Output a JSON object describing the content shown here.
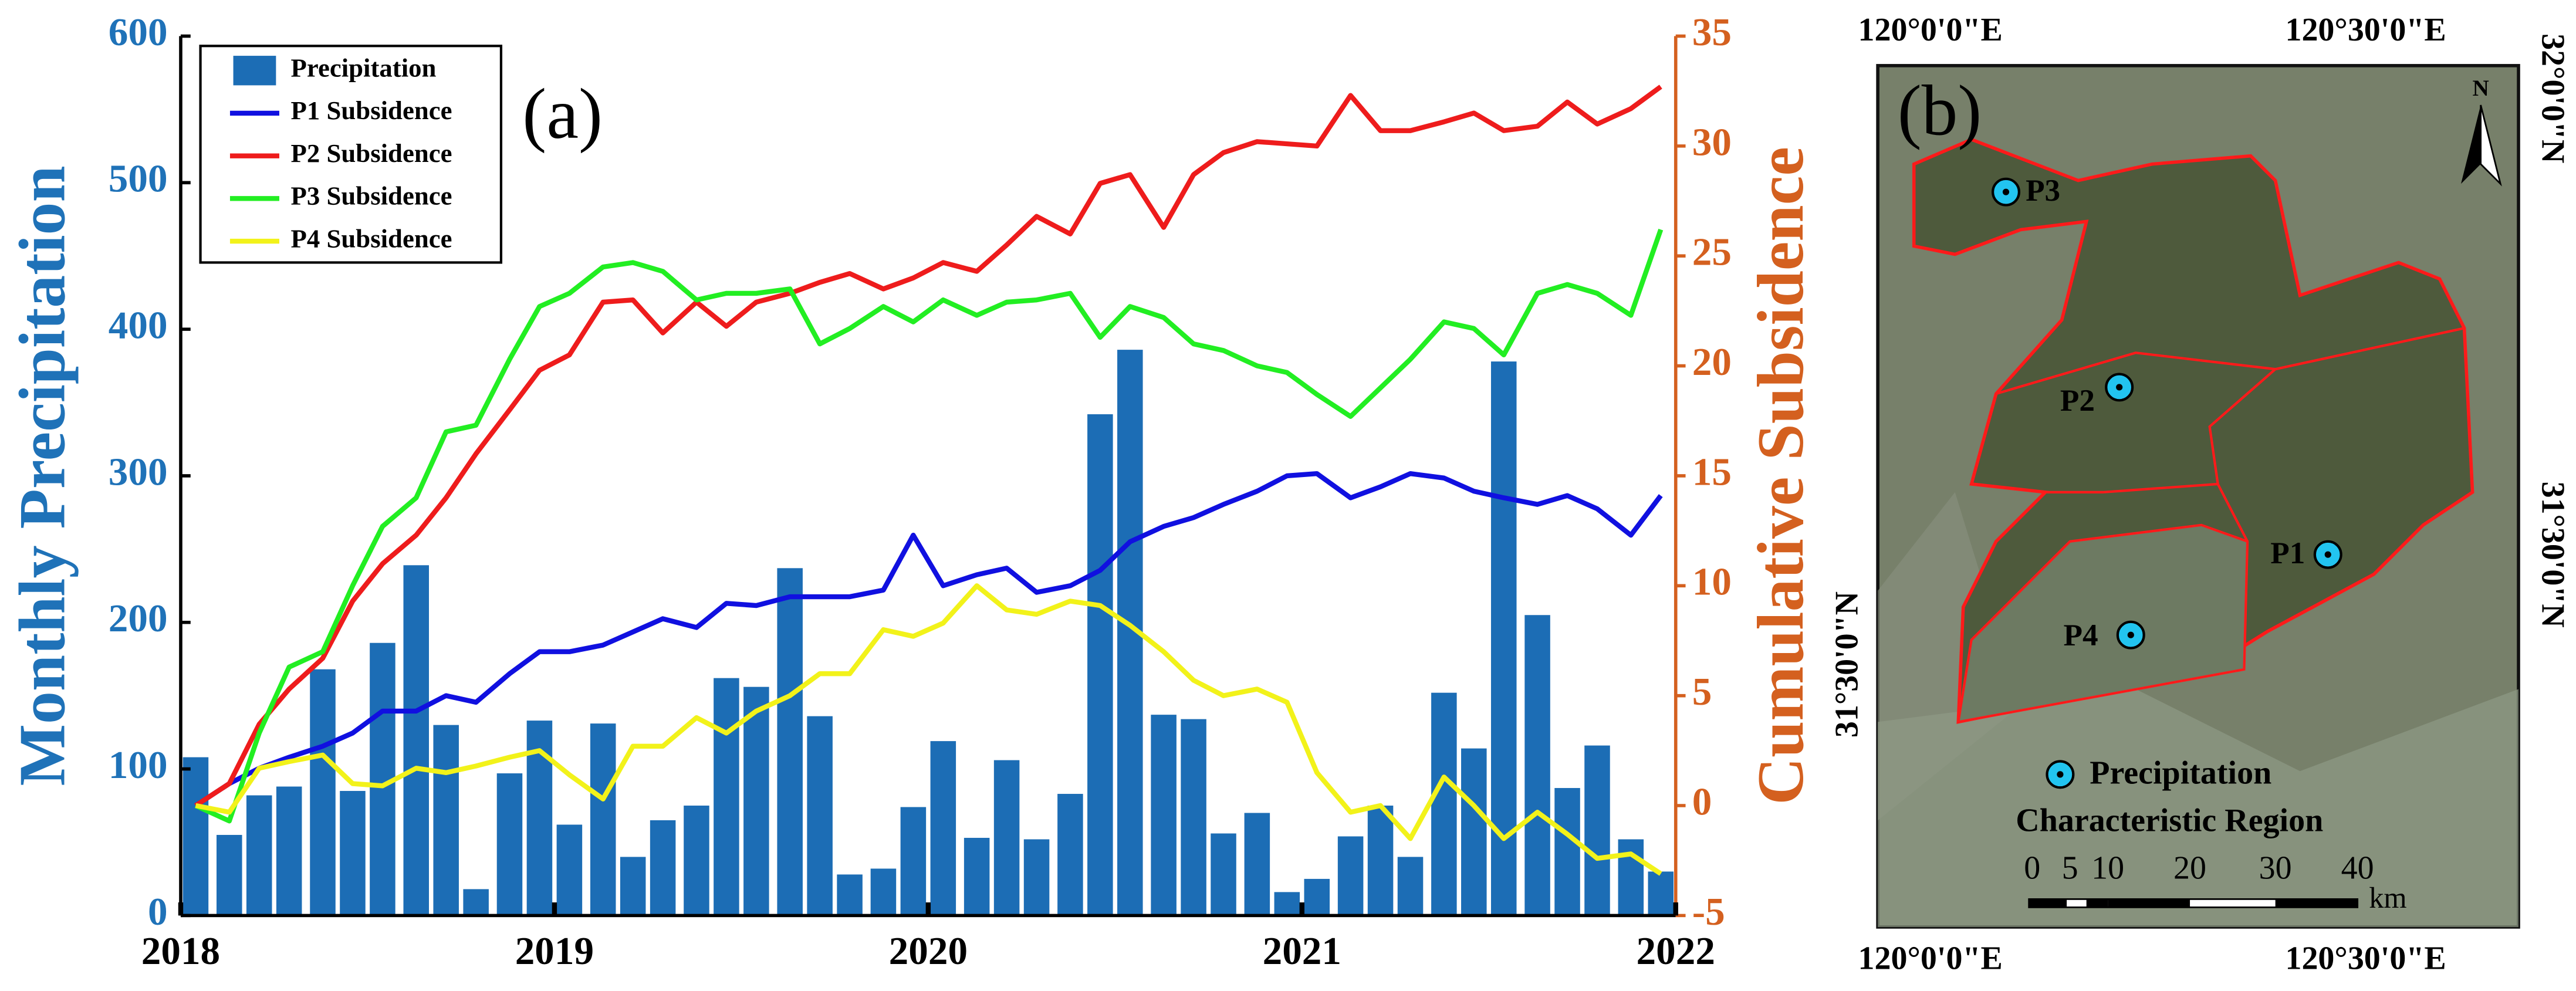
{
  "chart_data": {
    "type": "bar",
    "annotation": "(a)",
    "y_label": "Monthly Precipitation",
    "y2_label": "Cumulative Subsidence",
    "xlim": [
      2018,
      2022
    ],
    "xticks": [
      2018,
      2019,
      2020,
      2021,
      2022
    ],
    "ylim": [
      0,
      600
    ],
    "yticks": [
      0,
      100,
      200,
      300,
      400,
      500,
      600
    ],
    "y2lim": [
      -5,
      35
    ],
    "y2ticks": [
      -5,
      0,
      5,
      10,
      15,
      20,
      25,
      30,
      35
    ],
    "legend": "upper left",
    "grid": false,
    "x": [
      2018.04,
      2018.13,
      2018.21,
      2018.29,
      2018.38,
      2018.46,
      2018.54,
      2018.63,
      2018.71,
      2018.79,
      2018.88,
      2018.96,
      2019.04,
      2019.13,
      2019.21,
      2019.29,
      2019.38,
      2019.46,
      2019.54,
      2019.63,
      2019.71,
      2019.79,
      2019.88,
      2019.96,
      2020.04,
      2020.13,
      2020.21,
      2020.29,
      2020.38,
      2020.46,
      2020.54,
      2020.63,
      2020.71,
      2020.79,
      2020.88,
      2020.96,
      2021.04,
      2021.13,
      2021.21,
      2021.29,
      2021.38,
      2021.46,
      2021.54,
      2021.63,
      2021.71,
      2021.79,
      2021.88,
      2021.96
    ],
    "series": [
      {
        "name": "Precipitation",
        "type": "bar",
        "color": "#1c6db5",
        "values": [
          108,
          55,
          82,
          88,
          168,
          85,
          186,
          239,
          130,
          18,
          97,
          133,
          62,
          131,
          40,
          65,
          75,
          162,
          156,
          237,
          136,
          28,
          32,
          74,
          119,
          53,
          106,
          52,
          83,
          342,
          386,
          137,
          134,
          56,
          70,
          16,
          25,
          54,
          75,
          40,
          152,
          114,
          378,
          205,
          87,
          116,
          52,
          30
        ]
      },
      {
        "name": "P1 Subsidence",
        "type": "line",
        "axis": "y2",
        "color": "#1010e0",
        "values": [
          0,
          1,
          1.7,
          2.2,
          2.7,
          3.3,
          4.3,
          4.3,
          5,
          4.7,
          6,
          7,
          7,
          7.3,
          7.9,
          8.5,
          8.1,
          9.2,
          9.1,
          9.5,
          9.5,
          9.5,
          9.8,
          12.3,
          10,
          10.5,
          10.8,
          9.7,
          10,
          10.7,
          12,
          12.7,
          13.1,
          13.7,
          14.3,
          15,
          15.1,
          14,
          14.5,
          15.1,
          14.9,
          14.3,
          14,
          13.7,
          14.1,
          13.5,
          12.3,
          14.1
        ]
      },
      {
        "name": "P2 Subsidence",
        "type": "line",
        "axis": "y2",
        "color": "#ee1c1c",
        "values": [
          0,
          1,
          3.7,
          5.3,
          6.7,
          9.3,
          11,
          12.3,
          14,
          16,
          18,
          19.8,
          20.5,
          22.9,
          23,
          21.5,
          22.9,
          21.8,
          22.9,
          23.3,
          23.8,
          24.2,
          23.5,
          24,
          24.7,
          24.3,
          25.5,
          26.8,
          26,
          28.3,
          28.7,
          26.3,
          28.7,
          29.7,
          30.2,
          30.1,
          30,
          32.3,
          30.7,
          30.7,
          31.1,
          31.5,
          30.7,
          30.9,
          32,
          31,
          31.7,
          32.7
        ]
      },
      {
        "name": "P3 Subsidence",
        "type": "line",
        "axis": "y2",
        "color": "#22ee22",
        "values": [
          0,
          -0.7,
          3.3,
          6.3,
          7,
          10,
          12.7,
          14,
          17,
          17.3,
          20.3,
          22.7,
          23.3,
          24.5,
          24.7,
          24.3,
          23,
          23.3,
          23.3,
          23.5,
          21,
          21.7,
          22.7,
          22,
          23,
          22.3,
          22.9,
          23,
          23.3,
          21.3,
          22.7,
          22.2,
          21,
          20.7,
          20,
          19.7,
          18.7,
          17.7,
          19,
          20.3,
          22,
          21.7,
          20.5,
          23.3,
          23.7,
          23.3,
          22.3,
          26.2
        ]
      },
      {
        "name": "P4 Subsidence",
        "type": "line",
        "axis": "y2",
        "color": "#f2f21a",
        "values": [
          0,
          -0.3,
          1.7,
          2,
          2.3,
          1,
          0.9,
          1.7,
          1.5,
          1.8,
          2.2,
          2.5,
          1.4,
          0.3,
          2.7,
          2.7,
          4,
          3.3,
          4.3,
          5,
          6,
          6,
          8,
          7.7,
          8.3,
          10,
          8.9,
          8.7,
          9.3,
          9.1,
          8.2,
          7,
          5.7,
          5,
          5.3,
          4.7,
          1.5,
          -0.3,
          0,
          -1.5,
          1.3,
          0,
          -1.5,
          -0.3,
          -1.3,
          -2.4,
          -2.2,
          -3.1
        ]
      }
    ]
  },
  "map": {
    "label": "(b)",
    "north": "N",
    "top_labels": [
      "120°0'0\"E",
      "120°30'0\"E"
    ],
    "bottom_labels": [
      "120°0'0\"E",
      "120°30'0\"E"
    ],
    "right_labels": [
      "32°0'0\"N",
      "31°30'0\"N"
    ],
    "left_labels": [
      "31°30'0\"N"
    ],
    "points": [
      "P1",
      "P2",
      "P3",
      "P4"
    ],
    "legend": [
      "Precipitation",
      "Characteristic Region"
    ],
    "scale_labels": [
      "0",
      "5",
      "10",
      "20",
      "30",
      "40"
    ],
    "scale_unit": "km"
  }
}
